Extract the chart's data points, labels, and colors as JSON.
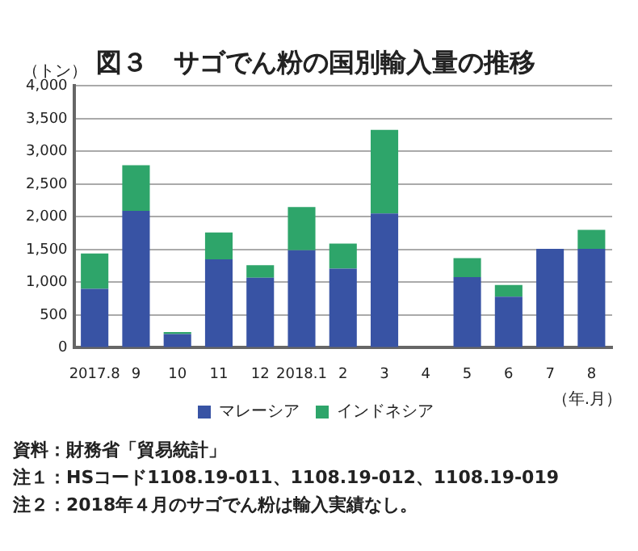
{
  "chart_data": {
    "type": "bar",
    "title": "図３　サゴでん粉の国別輸入量の推移",
    "ylabel": "（トン）",
    "xlabel": "（年.月）",
    "stacked": true,
    "categories": [
      "2017.8",
      "9",
      "10",
      "11",
      "12",
      "2018.1",
      "2",
      "3",
      "4",
      "5",
      "6",
      "7",
      "8"
    ],
    "series": [
      {
        "name": "マレーシア",
        "color": "#3853a4",
        "values": [
          900,
          2090,
          210,
          1350,
          1070,
          1490,
          1210,
          2050,
          0,
          1080,
          780,
          1510,
          1510
        ]
      },
      {
        "name": "インドネシア",
        "color": "#2ea56a",
        "values": [
          540,
          700,
          30,
          410,
          190,
          660,
          380,
          1280,
          0,
          290,
          180,
          0,
          290
        ]
      }
    ],
    "ylim": [
      0,
      4000
    ],
    "yticks": [
      {
        "value": 0,
        "label": "0"
      },
      {
        "value": 500,
        "label": "500"
      },
      {
        "value": 1000,
        "label": "1,000"
      },
      {
        "value": 1500,
        "label": "1,500"
      },
      {
        "value": 2000,
        "label": "2,000"
      },
      {
        "value": 2500,
        "label": "2,500"
      },
      {
        "value": 3000,
        "label": "3,000"
      },
      {
        "value": 3500,
        "label": "3,500"
      },
      {
        "value": 4000,
        "label": "4,000"
      }
    ],
    "grid": "y",
    "legend": "bottom",
    "annotations": [
      "資料：財務省「貿易統計」",
      "注１：HSコード1108.19-011、1108.19-012、1108.19-019",
      "注２：2018年４月のサゴでん粉は輸入実績なし。"
    ]
  }
}
